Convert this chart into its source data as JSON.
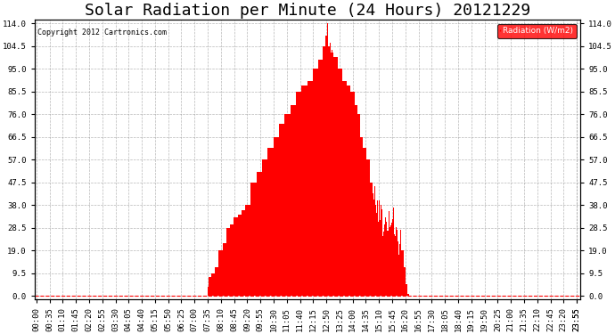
{
  "title": "Solar Radiation per Minute (24 Hours) 20121229",
  "copyright_text": "Copyright 2012 Cartronics.com",
  "legend_label": "Radiation (W/m2)",
  "bg_color": "#ffffff",
  "plot_bg_color": "#ffffff",
  "bar_color": "#ff0000",
  "grid_color": "#888888",
  "zero_line_color": "#ff0000",
  "yticks": [
    0.0,
    9.5,
    19.0,
    28.5,
    38.0,
    47.5,
    57.0,
    66.5,
    76.0,
    85.5,
    95.0,
    104.5,
    114.0
  ],
  "ymax": 114.0,
  "ymin": 0.0,
  "title_fontsize": 13,
  "axis_fontsize": 6.5,
  "n_minutes": 1440,
  "sunrise_minute": 455,
  "sunset_minute": 985,
  "peak_minute": 772,
  "peak_value": 114.0
}
